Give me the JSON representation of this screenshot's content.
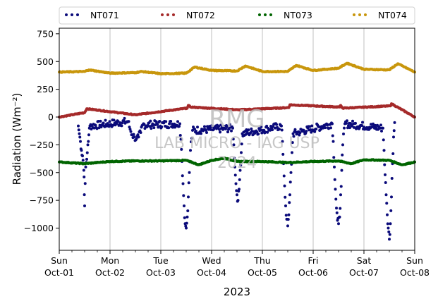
{
  "chart_data": {
    "type": "scatter",
    "xlabel": "2023",
    "ylabel": "Radiation (Wm⁻²)",
    "ylim": [
      -1200,
      800
    ],
    "yticks": [
      -1000,
      -750,
      -500,
      -250,
      0,
      250,
      500,
      750
    ],
    "ytick_labels": [
      "−1000",
      "−750",
      "−500",
      "−250",
      "0",
      "250",
      "500",
      "750"
    ],
    "xlim": [
      "2023-10-01",
      "2023-10-08"
    ],
    "xticks": [
      {
        "date": "2023-10-01",
        "day": "Sun",
        "date_label": "Oct-01"
      },
      {
        "date": "2023-10-02",
        "day": "Mon",
        "date_label": "Oct-02"
      },
      {
        "date": "2023-10-03",
        "day": "Tue",
        "date_label": "Oct-03"
      },
      {
        "date": "2023-10-04",
        "day": "Wed",
        "date_label": "Oct-04"
      },
      {
        "date": "2023-10-05",
        "day": "Thu",
        "date_label": "Oct-05"
      },
      {
        "date": "2023-10-06",
        "day": "Fri",
        "date_label": "Oct-06"
      },
      {
        "date": "2023-10-07",
        "day": "Sat",
        "date_label": "Oct-07"
      },
      {
        "date": "2023-10-08",
        "day": "Sun",
        "date_label": "Oct-08"
      }
    ],
    "grid": "vertical",
    "legend_placement": "top",
    "watermark": [
      "RMG",
      "LAB MICRO - IAG USP",
      "2024"
    ],
    "series": [
      {
        "name": "NT071",
        "color": "#0a0a7a",
        "points": [
          [
            "2023-10-01T09:00",
            -80
          ],
          [
            "2023-10-01T09:30",
            -150
          ],
          [
            "2023-10-01T10:00",
            -220
          ],
          [
            "2023-10-01T10:30",
            -300
          ],
          [
            "2023-10-01T11:00",
            -350
          ],
          [
            "2023-10-01T11:30",
            -420
          ],
          [
            "2023-10-01T11:45",
            -540
          ],
          [
            "2023-10-01T12:00",
            -800
          ],
          [
            "2023-10-01T12:30",
            -450
          ],
          [
            "2023-10-01T13:00",
            -380
          ],
          [
            "2023-10-01T13:30",
            -250
          ],
          [
            "2023-10-01T14:00",
            -160
          ],
          [
            "2023-10-01T14:30",
            -80
          ],
          [
            "2023-10-02T08:30",
            -40
          ],
          [
            "2023-10-02T09:30",
            -110
          ],
          [
            "2023-10-02T10:30",
            -160
          ],
          [
            "2023-10-02T11:30",
            -180
          ],
          [
            "2023-10-02T12:30",
            -195
          ],
          [
            "2023-10-02T13:30",
            -180
          ],
          [
            "2023-10-02T14:30",
            -140
          ],
          [
            "2023-10-02T15:30",
            -70
          ],
          [
            "2023-10-03T09:00",
            -60
          ],
          [
            "2023-10-03T09:30",
            -200
          ],
          [
            "2023-10-03T10:00",
            -400
          ],
          [
            "2023-10-03T10:30",
            -600
          ],
          [
            "2023-10-03T11:00",
            -800
          ],
          [
            "2023-10-03T11:30",
            -960
          ],
          [
            "2023-10-03T12:00",
            -1000
          ],
          [
            "2023-10-03T12:30",
            -900
          ],
          [
            "2023-10-03T13:00",
            -720
          ],
          [
            "2023-10-03T13:30",
            -500
          ],
          [
            "2023-10-03T14:00",
            -300
          ],
          [
            "2023-10-03T15:00",
            -120
          ],
          [
            "2023-10-04T10:00",
            -100
          ],
          [
            "2023-10-04T10:30",
            -250
          ],
          [
            "2023-10-04T11:00",
            -450
          ],
          [
            "2023-10-04T11:30",
            -600
          ],
          [
            "2023-10-04T12:00",
            -700
          ],
          [
            "2023-10-04T12:30",
            -750
          ],
          [
            "2023-10-04T13:00",
            -650
          ],
          [
            "2023-10-04T13:30",
            -480
          ],
          [
            "2023-10-04T14:00",
            -320
          ],
          [
            "2023-10-04T14:30",
            -150
          ],
          [
            "2023-10-05T09:00",
            -80
          ],
          [
            "2023-10-05T09:30",
            -220
          ],
          [
            "2023-10-05T10:00",
            -420
          ],
          [
            "2023-10-05T10:30",
            -620
          ],
          [
            "2023-10-05T11:00",
            -800
          ],
          [
            "2023-10-05T11:30",
            -920
          ],
          [
            "2023-10-05T12:00",
            -980
          ],
          [
            "2023-10-05T12:30",
            -880
          ],
          [
            "2023-10-05T13:00",
            -700
          ],
          [
            "2023-10-05T13:30",
            -500
          ],
          [
            "2023-10-05T14:00",
            -320
          ],
          [
            "2023-10-05T14:30",
            -150
          ],
          [
            "2023-10-06T09:00",
            -60
          ],
          [
            "2023-10-06T09:30",
            -220
          ],
          [
            "2023-10-06T10:00",
            -450
          ],
          [
            "2023-10-06T10:30",
            -650
          ],
          [
            "2023-10-06T11:00",
            -820
          ],
          [
            "2023-10-06T11:30",
            -930
          ],
          [
            "2023-10-06T12:00",
            -960
          ],
          [
            "2023-10-06T12:30",
            -900
          ],
          [
            "2023-10-06T13:00",
            -700
          ],
          [
            "2023-10-06T13:30",
            -480
          ],
          [
            "2023-10-06T14:00",
            -250
          ],
          [
            "2023-10-06T15:00",
            -60
          ],
          [
            "2023-10-07T09:00",
            -100
          ],
          [
            "2023-10-07T09:30",
            -300
          ],
          [
            "2023-10-07T10:00",
            -520
          ],
          [
            "2023-10-07T10:30",
            -700
          ],
          [
            "2023-10-07T11:00",
            -880
          ],
          [
            "2023-10-07T11:30",
            -1000
          ],
          [
            "2023-10-07T12:00",
            -1100
          ],
          [
            "2023-10-07T12:30",
            -960
          ],
          [
            "2023-10-07T13:00",
            -720
          ],
          [
            "2023-10-07T13:30",
            -420
          ],
          [
            "2023-10-07T14:00",
            -180
          ],
          [
            "2023-10-07T14:30",
            -50
          ]
        ]
      },
      {
        "name": "NT072",
        "color": "#a52a2a",
        "points": [
          [
            "2023-10-01T00:00",
            0
          ],
          [
            "2023-10-01T12:00",
            40
          ],
          [
            "2023-10-01T13:00",
            75
          ],
          [
            "2023-10-02T12:00",
            20
          ],
          [
            "2023-10-03T12:30",
            80
          ],
          [
            "2023-10-03T13:00",
            105
          ],
          [
            "2023-10-03T14:00",
            90
          ],
          [
            "2023-10-04T12:30",
            65
          ],
          [
            "2023-10-05T12:30",
            85
          ],
          [
            "2023-10-05T13:00",
            110
          ],
          [
            "2023-10-06T12:30",
            90
          ],
          [
            "2023-10-06T13:00",
            105
          ],
          [
            "2023-10-06T14:00",
            80
          ],
          [
            "2023-10-07T12:30",
            100
          ],
          [
            "2023-10-07T13:00",
            120
          ],
          [
            "2023-10-08T00:00",
            0
          ]
        ]
      },
      {
        "name": "NT073",
        "color": "#006400",
        "points": [
          [
            "2023-10-01T00:00",
            -405
          ],
          [
            "2023-10-01T12:00",
            -420
          ],
          [
            "2023-10-02T00:00",
            -400
          ],
          [
            "2023-10-02T12:00",
            -395
          ],
          [
            "2023-10-03T00:00",
            -395
          ],
          [
            "2023-10-03T12:00",
            -390
          ],
          [
            "2023-10-03T18:00",
            -430
          ],
          [
            "2023-10-04T00:00",
            -390
          ],
          [
            "2023-10-04T06:00",
            -370
          ],
          [
            "2023-10-04T12:00",
            -400
          ],
          [
            "2023-10-05T00:00",
            -400
          ],
          [
            "2023-10-05T12:00",
            -410
          ],
          [
            "2023-10-06T00:00",
            -400
          ],
          [
            "2023-10-06T12:00",
            -395
          ],
          [
            "2023-10-06T18:00",
            -420
          ],
          [
            "2023-10-07T00:00",
            -385
          ],
          [
            "2023-10-07T12:00",
            -390
          ],
          [
            "2023-10-07T18:00",
            -430
          ],
          [
            "2023-10-08T00:00",
            -405
          ]
        ]
      },
      {
        "name": "NT074",
        "color": "#c8960c",
        "points": [
          [
            "2023-10-01T00:00",
            405
          ],
          [
            "2023-10-01T12:00",
            410
          ],
          [
            "2023-10-01T14:00",
            425
          ],
          [
            "2023-10-02T00:00",
            395
          ],
          [
            "2023-10-02T12:00",
            400
          ],
          [
            "2023-10-02T15:00",
            410
          ],
          [
            "2023-10-03T00:00",
            390
          ],
          [
            "2023-10-03T12:00",
            395
          ],
          [
            "2023-10-03T16:00",
            450
          ],
          [
            "2023-10-04T00:00",
            420
          ],
          [
            "2023-10-04T12:00",
            415
          ],
          [
            "2023-10-04T16:00",
            460
          ],
          [
            "2023-10-05T00:00",
            410
          ],
          [
            "2023-10-05T12:00",
            410
          ],
          [
            "2023-10-05T16:00",
            465
          ],
          [
            "2023-10-06T00:00",
            420
          ],
          [
            "2023-10-06T12:00",
            440
          ],
          [
            "2023-10-06T16:00",
            485
          ],
          [
            "2023-10-07T00:00",
            430
          ],
          [
            "2023-10-07T12:00",
            425
          ],
          [
            "2023-10-07T16:00",
            480
          ],
          [
            "2023-10-08T00:00",
            405
          ]
        ]
      }
    ]
  }
}
